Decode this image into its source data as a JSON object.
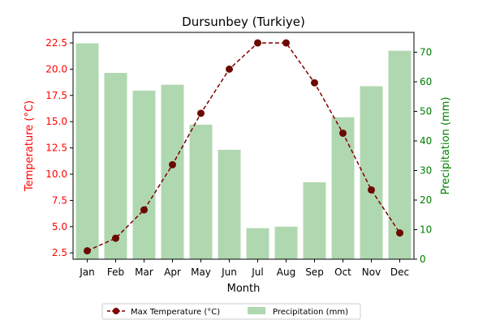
{
  "chart_data": {
    "type": "bar+line",
    "title": "Dursunbey (Turkiye)",
    "xlabel": "Month",
    "ylabel_left": "Temperature (°C)",
    "ylabel_right": "Precipitation (mm)",
    "categories": [
      "Jan",
      "Feb",
      "Mar",
      "Apr",
      "May",
      "Jun",
      "Jul",
      "Aug",
      "Sep",
      "Oct",
      "Nov",
      "Dec"
    ],
    "left_axis": {
      "ylim": [
        1.9,
        23.5
      ],
      "ticks": [
        "2.5",
        "5.0",
        "7.5",
        "10.0",
        "12.5",
        "15.0",
        "17.5",
        "20.0",
        "22.5"
      ],
      "color": "#ff0000"
    },
    "right_axis": {
      "ylim": [
        0,
        76.7
      ],
      "ticks": [
        "0",
        "10",
        "20",
        "30",
        "40",
        "50",
        "60",
        "70"
      ],
      "color": "#008000"
    },
    "series": [
      {
        "name": "Max Temperature (°C)",
        "type": "line",
        "axis": "left",
        "color": "#800000",
        "values": [
          2.7,
          3.9,
          6.6,
          10.9,
          15.8,
          20.0,
          22.5,
          22.5,
          18.7,
          13.9,
          8.5,
          4.4
        ]
      },
      {
        "name": "Precipitation (mm)",
        "type": "bar",
        "axis": "right",
        "color": "#b0d8b0",
        "values": [
          73,
          63,
          57,
          59,
          45.5,
          37,
          10.5,
          11,
          26,
          48,
          58.5,
          70.5
        ]
      }
    ],
    "grid": false,
    "legend_placement": "bottom-center"
  }
}
